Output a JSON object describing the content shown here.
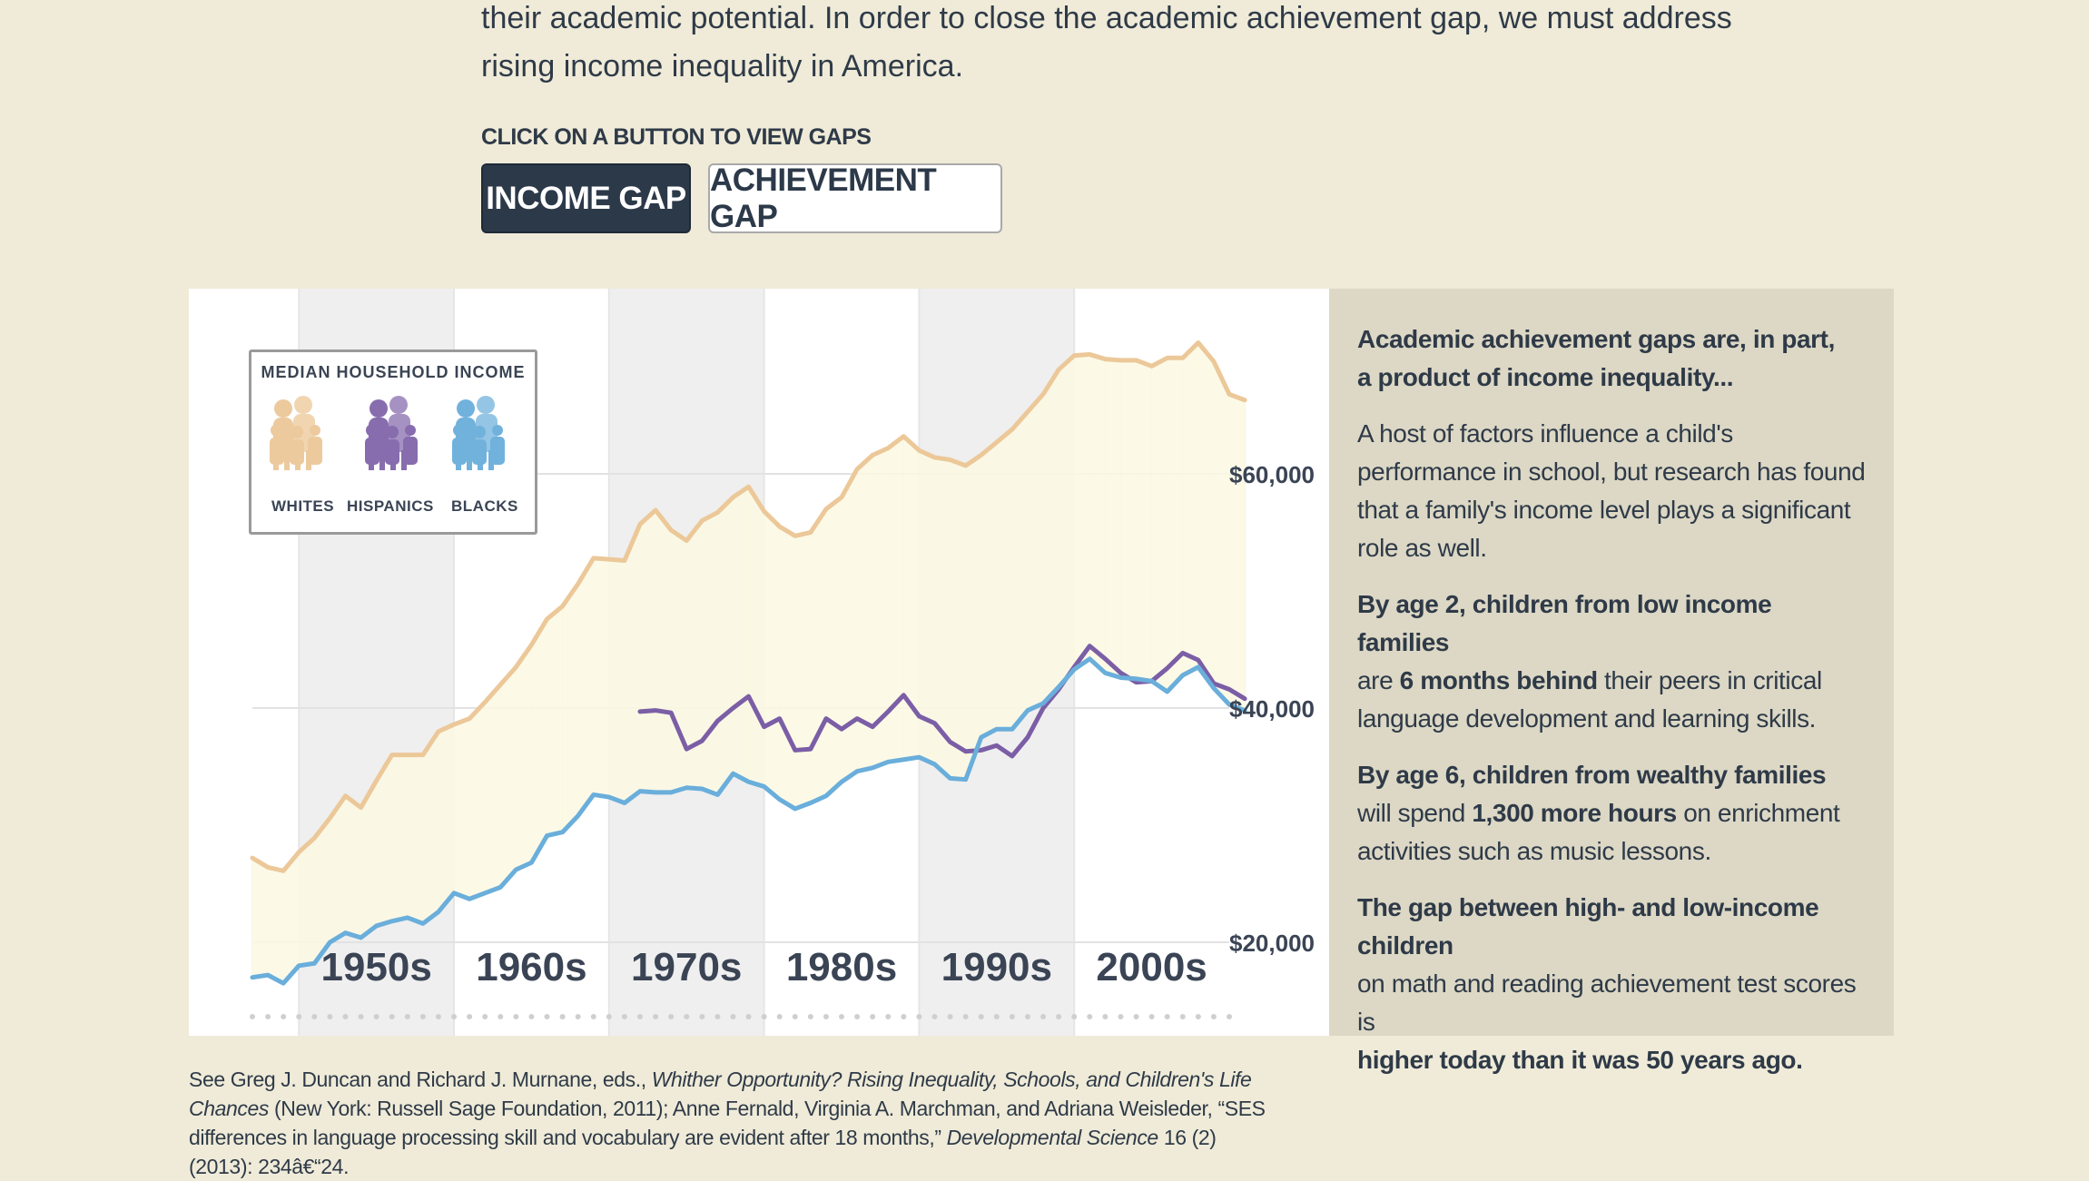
{
  "intro": {
    "line1": "their academic potential. In order to close the academic achievement gap, we must address",
    "line2": "rising income inequality in America."
  },
  "buttons": {
    "caption": "CLICK ON A BUTTON TO VIEW GAPS",
    "income_gap": "INCOME GAP",
    "achievement_gap": "ACHIEVEMENT GAP"
  },
  "legend": {
    "title": "MEDIAN HOUSEHOLD INCOME",
    "whites": "WHITES",
    "hispanics": "HISPANICS",
    "blacks": "BLACKS"
  },
  "colors": {
    "whites": "#ecc899",
    "hispanics": "#7b5ea6",
    "blacks": "#6aaedb",
    "fill": "#fbf9e3",
    "button_active": "#2c3949"
  },
  "side_panel": {
    "heading_line1": "Academic achievement gaps are, in part,",
    "heading_line2": "a product of income inequality...",
    "p1": "A host of factors influence a child's performance in school, but research has found that a family's income level plays a significant role as well.",
    "p2_bold_a": "By age 2, children from low income families",
    "p2_text_a": "are ",
    "p2_bold_b": "6 months behind",
    "p2_text_b": " their peers in critical language development and learning skills.",
    "p3_bold_a": "By age 6, children from wealthy families",
    "p3_text_a": "will spend ",
    "p3_bold_b": "1,300 more hours",
    "p3_text_b": " on enrichment activities such as music lessons.",
    "p4_bold_a": "The gap between high- and low-income children",
    "p4_text_a": "on math and reading achievement test scores is",
    "p4_bold_b": "higher today than it was 50 years ago."
  },
  "footnote": {
    "t1": "See Greg J. Duncan and Richard J. Murnane, eds., ",
    "i1": "Whither Opportunity? Rising Inequality, Schools, and Children's Life Chances",
    "t2": " (New York: Russell Sage Foundation, 2011); Anne Fernald, Virginia A. Marchman, and Adriana Weisleder, “SES differences in language processing skill and vocabulary are evident after 18 months,” ",
    "i2": "Developmental Science",
    "t3": " 16 (2) (2013): 234â€“24."
  },
  "chart_data": {
    "type": "line",
    "x_tick_labels": [
      "1950s",
      "1960s",
      "1970s",
      "1980s",
      "1990s",
      "2000s"
    ],
    "y_tick_labels": [
      "$60,000",
      "$40,000",
      "$20,000"
    ],
    "y_ticks": [
      60000,
      40000,
      20000
    ],
    "ylim": [
      12000,
      72000
    ],
    "xlim": [
      1947,
      2010
    ],
    "shaded_decades": [
      "1950s",
      "1970s",
      "1990s"
    ],
    "grid": true,
    "legend": "top-left",
    "series": [
      {
        "name": "WHITES",
        "start_year": 1947,
        "values": [
          27200,
          26400,
          26100,
          27700,
          28900,
          30600,
          32500,
          31500,
          33800,
          36000,
          36000,
          36000,
          38000,
          38600,
          39100,
          40500,
          42000,
          43500,
          45400,
          47600,
          48700,
          50600,
          52800,
          52700,
          52600,
          55700,
          56900,
          55200,
          54300,
          56000,
          56700,
          58000,
          58900,
          56800,
          55500,
          54700,
          55000,
          57000,
          58000,
          60400,
          61600,
          62200,
          63200,
          62000,
          61400,
          61200,
          60700,
          61600,
          62700,
          63800,
          65300,
          66800,
          68900,
          70100,
          70200,
          69800,
          69700,
          69700,
          69200,
          69900,
          69900,
          71200,
          69600,
          66800,
          66300
        ]
      },
      {
        "name": "HISPANICS",
        "start_year": 1972,
        "values": [
          39700,
          39800,
          39600,
          36500,
          37200,
          38900,
          40000,
          41000,
          38400,
          39100,
          36400,
          36500,
          39100,
          38200,
          39100,
          38400,
          39700,
          41100,
          39300,
          38700,
          37100,
          36300,
          36400,
          36800,
          35900,
          37500,
          40000,
          41600,
          43500,
          45300,
          44200,
          43000,
          42200,
          42300,
          43400,
          44700,
          44100,
          42100,
          41600,
          40800
        ]
      },
      {
        "name": "BLACKS",
        "start_year": 1947,
        "values": [
          17000,
          17200,
          16500,
          18000,
          18200,
          20000,
          20800,
          20400,
          21400,
          21800,
          22100,
          21600,
          22600,
          24200,
          23700,
          24200,
          24700,
          26200,
          26800,
          29100,
          29400,
          30800,
          32600,
          32400,
          31900,
          32900,
          32800,
          32800,
          33200,
          33100,
          32600,
          34400,
          33700,
          33300,
          32200,
          31400,
          31900,
          32500,
          33700,
          34600,
          34900,
          35400,
          35600,
          35800,
          35200,
          34000,
          33900,
          37500,
          38200,
          38200,
          39800,
          40400,
          41800,
          43300,
          44200,
          43000,
          42600,
          42500,
          42300,
          41400,
          42800,
          43500,
          41700,
          40300,
          39800
        ]
      }
    ]
  }
}
